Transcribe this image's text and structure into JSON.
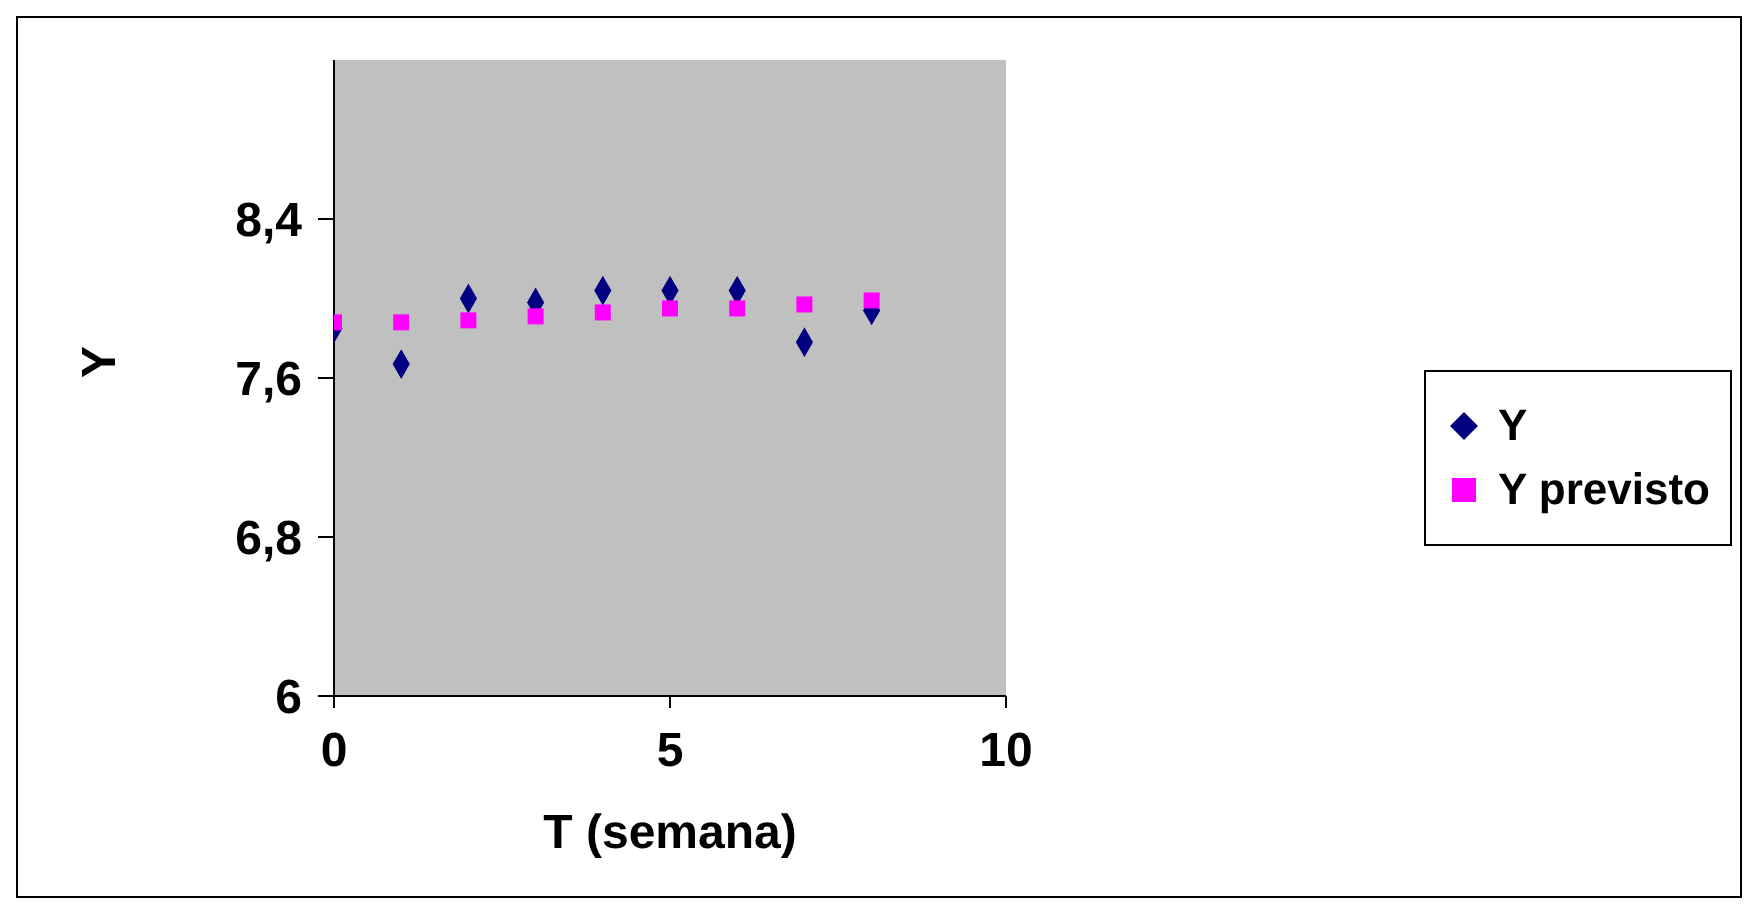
{
  "chart_data": {
    "type": "scatter",
    "xlabel": "T (semana)",
    "ylabel": "Y",
    "x": [
      0,
      1,
      2,
      3,
      4,
      5,
      6,
      7,
      8
    ],
    "series": [
      {
        "name": "Y",
        "color": "#000080",
        "marker": "diamond",
        "values": [
          7.85,
          7.67,
          8.0,
          7.98,
          8.04,
          8.04,
          8.04,
          7.78,
          7.94
        ]
      },
      {
        "name": "Y previsto",
        "color": "#ff00ff",
        "marker": "square",
        "values": [
          7.88,
          7.88,
          7.89,
          7.91,
          7.93,
          7.95,
          7.95,
          7.97,
          7.99
        ]
      }
    ],
    "xlim": [
      0,
      10
    ],
    "xticks": [
      0,
      5,
      10
    ],
    "ylim": [
      6,
      9.2
    ],
    "yticks": [
      6,
      {
        "value": 6.8,
        "label": "6,8"
      },
      {
        "value": 7.6,
        "label": "7,6"
      },
      {
        "value": 8.4,
        "label": "8,4"
      }
    ],
    "grid": false,
    "legend": "right"
  }
}
